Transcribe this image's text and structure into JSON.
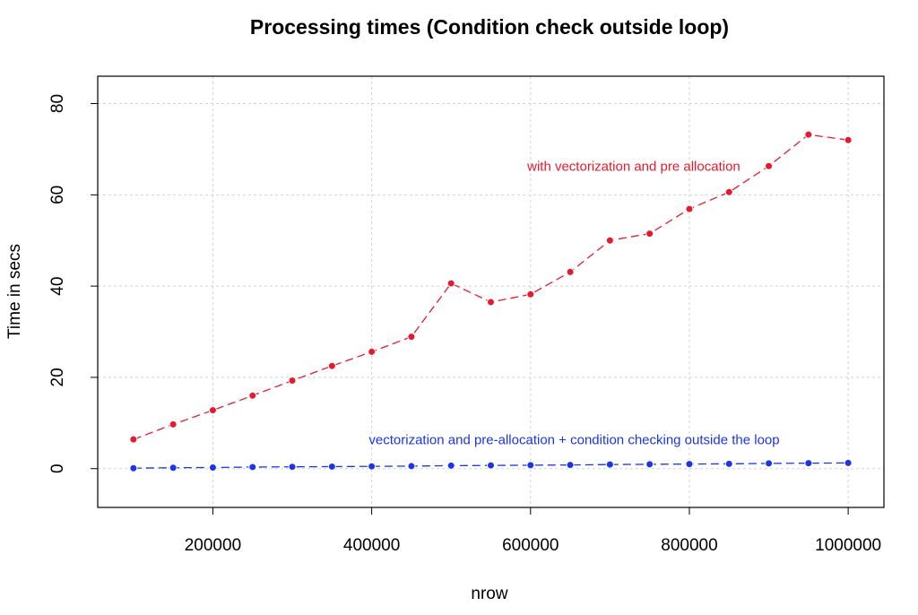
{
  "chart_data": {
    "type": "line",
    "title": "Processing times (Condition check outside loop)",
    "xlabel": "nrow",
    "ylabel": "Time in secs",
    "x": [
      100000,
      150000,
      200000,
      250000,
      300000,
      350000,
      400000,
      450000,
      500000,
      550000,
      600000,
      650000,
      700000,
      750000,
      800000,
      850000,
      900000,
      950000,
      1000000
    ],
    "xlim": [
      55000,
      1045000
    ],
    "ylim": [
      -8.5,
      86
    ],
    "x_ticks": [
      200000,
      400000,
      600000,
      800000,
      1000000
    ],
    "x_tick_labels": [
      "200000",
      "400000",
      "600000",
      "800000",
      "1000000"
    ],
    "y_ticks": [
      0,
      20,
      40,
      60,
      80
    ],
    "y_tick_labels": [
      "0",
      "20",
      "40",
      "60",
      "80"
    ],
    "grid": true,
    "series": [
      {
        "color": "#e8192c",
        "values": [
          6.4,
          9.7,
          12.8,
          16.0,
          19.3,
          22.5,
          25.6,
          28.9,
          40.6,
          36.5,
          38.2,
          43.1,
          50.0,
          51.5,
          56.9,
          60.6,
          66.3,
          73.2,
          72.0
        ],
        "annotation": {
          "text": "with vectorization and pre allocation",
          "x": 730000,
          "y": 66.3
        }
      },
      {
        "color": "#1b35e6",
        "values": [
          0.1,
          0.2,
          0.25,
          0.35,
          0.4,
          0.45,
          0.5,
          0.55,
          0.65,
          0.7,
          0.75,
          0.8,
          0.9,
          0.95,
          1.0,
          1.05,
          1.15,
          1.2,
          1.25
        ],
        "annotation": {
          "text": "vectorization and pre-allocation + condition checking outside the loop",
          "x": 655000,
          "y": 6.3
        }
      }
    ]
  }
}
